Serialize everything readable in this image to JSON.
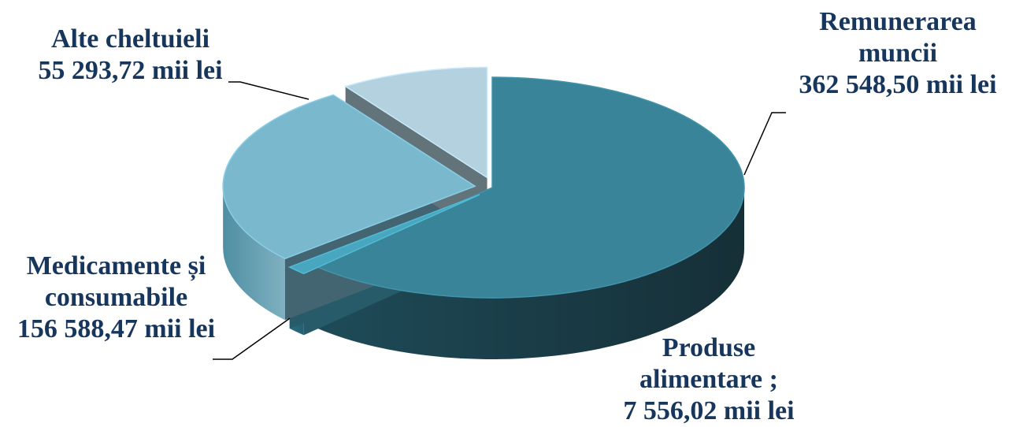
{
  "chart_data": {
    "type": "pie",
    "title": "",
    "label_color": "#17365d",
    "slices": [
      {
        "lines": [
          "Remunerarea",
          "muncii",
          "362 548,50 mii lei"
        ],
        "value": 362548.5,
        "color": "#3a8499",
        "exploded": false
      },
      {
        "lines": [
          "Produse",
          "alimentare ;",
          "7 556,02 mii lei"
        ],
        "value": 7556.02,
        "color": "#49a6bf",
        "exploded": true
      },
      {
        "lines": [
          "Medicamente și",
          "consumabile",
          "156 588,47 mii lei"
        ],
        "value": 156588.47,
        "color": "#7ab8cd",
        "exploded": true
      },
      {
        "lines": [
          "Alte cheltuieli",
          "55 293,72 mii lei"
        ],
        "value": 55293.72,
        "color": "#b3d1de",
        "exploded": true
      }
    ]
  }
}
